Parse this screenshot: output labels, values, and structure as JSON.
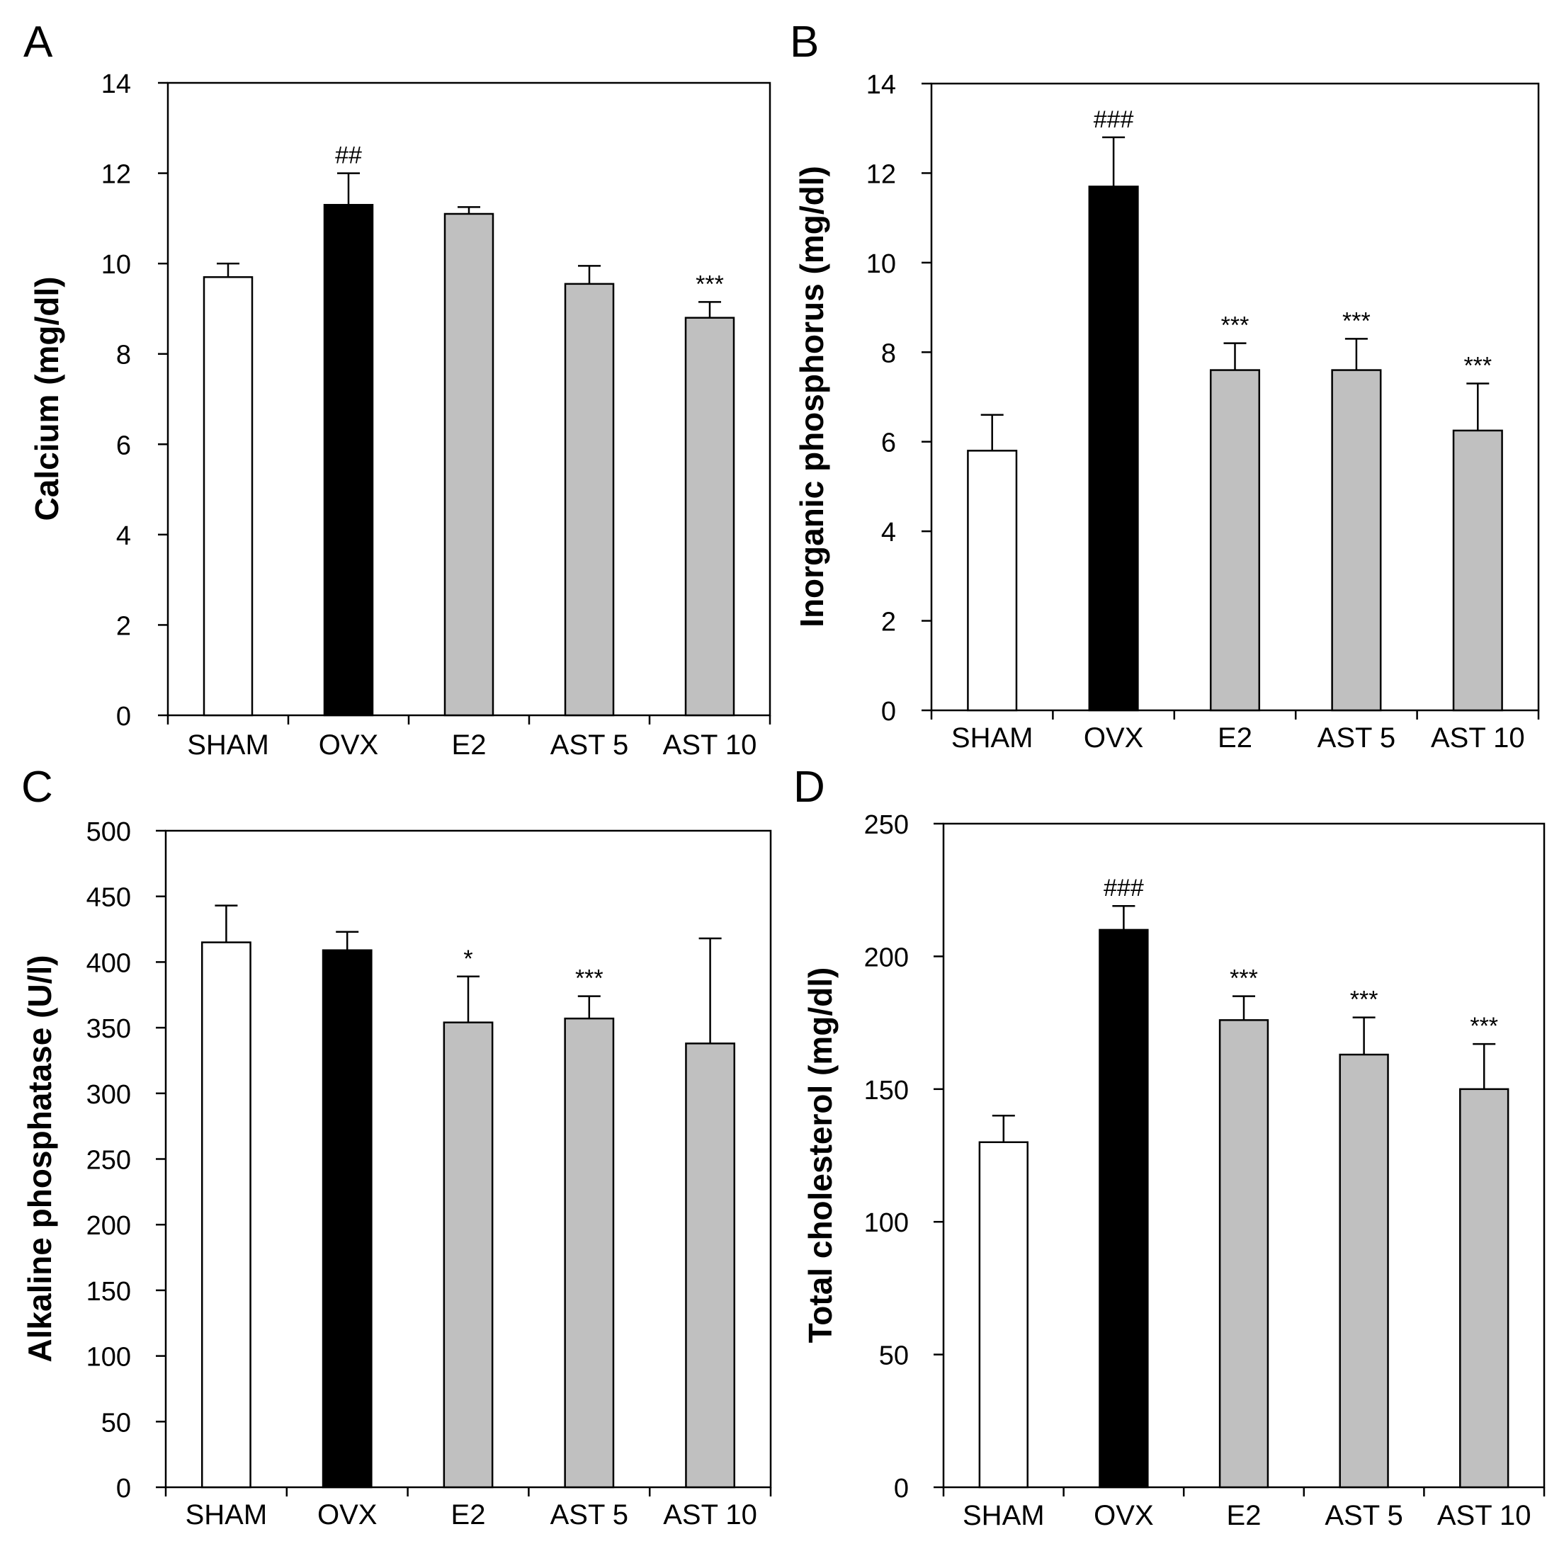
{
  "figure": {
    "bar_colors": {
      "SHAM": "#ffffff",
      "OVX": "#000000",
      "E2": "#c0c0c0",
      "AST 5": "#c0c0c0",
      "AST 10": "#c0c0c0"
    },
    "stroke_color": "#000000"
  },
  "chart_data": [
    {
      "panel": "A",
      "type": "bar",
      "categories": [
        "SHAM",
        "OVX",
        "E2",
        "AST 5",
        "AST 10"
      ],
      "values": [
        9.7,
        11.3,
        11.1,
        9.55,
        8.8
      ],
      "errors": [
        0.3,
        0.7,
        0.15,
        0.4,
        0.35
      ],
      "annotations": [
        "",
        "##",
        "",
        "",
        "***"
      ],
      "ylabel": "Calcium (mg/dl)",
      "xlabel": "",
      "ylim": [
        0,
        14
      ],
      "yticks": [
        0,
        2,
        4,
        6,
        8,
        10,
        12,
        14
      ],
      "grid": false
    },
    {
      "panel": "B",
      "type": "bar",
      "categories": [
        "SHAM",
        "OVX",
        "E2",
        "AST 5",
        "AST 10"
      ],
      "values": [
        5.8,
        11.7,
        7.6,
        7.6,
        6.25
      ],
      "errors": [
        0.8,
        1.1,
        0.6,
        0.7,
        1.05
      ],
      "annotations": [
        "",
        "###",
        "***",
        "***",
        "***"
      ],
      "ylabel": "Inorganic phosphorus (mg/dl)",
      "xlabel": "",
      "ylim": [
        0,
        14
      ],
      "yticks": [
        0,
        2,
        4,
        6,
        8,
        10,
        12,
        14
      ],
      "grid": false
    },
    {
      "panel": "C",
      "type": "bar",
      "categories": [
        "SHAM",
        "OVX",
        "E2",
        "AST 5",
        "AST 10"
      ],
      "values": [
        415,
        409,
        354,
        357,
        338
      ],
      "errors": [
        28,
        14,
        35,
        17,
        80
      ],
      "annotations": [
        "",
        "",
        "*",
        "***",
        ""
      ],
      "ylabel": "Alkaline phosphatase (U/l)",
      "xlabel": "",
      "ylim": [
        0,
        500
      ],
      "yticks": [
        0,
        50,
        100,
        150,
        200,
        250,
        300,
        350,
        400,
        450,
        500
      ],
      "grid": false
    },
    {
      "panel": "D",
      "type": "bar",
      "categories": [
        "SHAM",
        "OVX",
        "E2",
        "AST 5",
        "AST 10"
      ],
      "values": [
        130,
        210,
        176,
        163,
        150
      ],
      "errors": [
        10,
        9,
        9,
        14,
        17
      ],
      "annotations": [
        "",
        "###",
        "***",
        "***",
        "***"
      ],
      "ylabel": "Total cholesterol (mg/dl)",
      "xlabel": "",
      "ylim": [
        0,
        250
      ],
      "yticks": [
        0,
        50,
        100,
        150,
        200,
        250
      ],
      "grid": false
    }
  ]
}
